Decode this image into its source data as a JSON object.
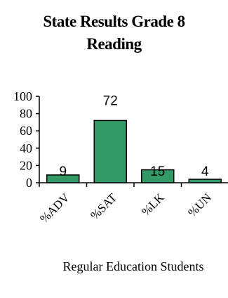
{
  "chart_data": {
    "type": "bar",
    "title_line1": "State Results Grade 8",
    "title_line2": "Reading",
    "xlabel": "Regular Education Students",
    "ylabel": "",
    "ylim": [
      0,
      100
    ],
    "yticks": [
      0,
      20,
      40,
      60,
      80,
      100
    ],
    "categories": [
      "%ADV",
      "%SAT",
      "%LK",
      "%UN"
    ],
    "values": [
      9,
      72,
      15,
      4
    ],
    "grid": false,
    "bar_color": "#339966"
  }
}
